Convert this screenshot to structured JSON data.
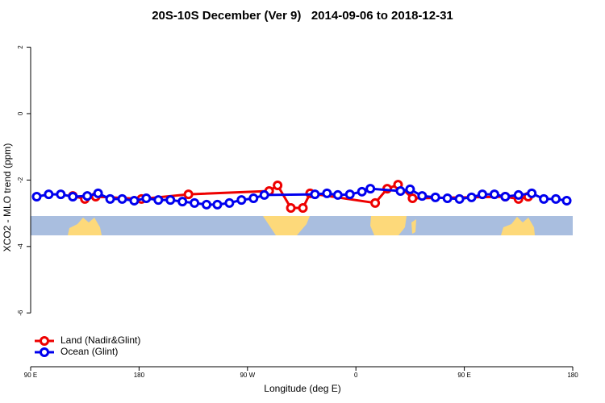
{
  "chart_data": {
    "type": "line",
    "title": "20S-10S December (Ver 9)   2014-09-06 to 2018-12-31",
    "xlabel": "Longitude (deg E)",
    "ylabel": "XCO2 - MLO trend (ppm)",
    "xlim": [
      90,
      540
    ],
    "ylim": [
      -7.62,
      2.45
    ],
    "xticks": [
      {
        "value": 90,
        "label": "90 E"
      },
      180,
      {
        "value": 270,
        "label": "90 W"
      },
      {
        "value": 360,
        "label": "0"
      },
      {
        "value": 450,
        "label": "90 E"
      },
      {
        "value": 540,
        "label": "180"
      }
    ],
    "yticks": [
      2,
      0,
      -2,
      -4,
      -6
    ],
    "legend": "bottom-left",
    "series": [
      {
        "name": "Land (Nadir&Glint)",
        "color": "#ee0000",
        "x": [
          125,
          135,
          144,
          182,
          221,
          288,
          295,
          306,
          316,
          322,
          376,
          386,
          395,
          407,
          484,
          495,
          503
        ],
        "values": [
          -2.48,
          -2.57,
          -2.5,
          -2.57,
          -2.43,
          -2.33,
          -2.16,
          -2.84,
          -2.84,
          -2.4,
          -2.69,
          -2.26,
          -2.14,
          -2.55,
          -2.5,
          -2.57,
          -2.5
        ]
      },
      {
        "name": "Ocean (Glint)",
        "color": "#0000ee",
        "x": [
          95,
          105,
          115,
          125,
          137,
          146,
          156,
          166,
          176,
          186,
          196,
          206,
          216,
          226,
          236,
          245,
          255,
          265,
          275,
          284,
          326,
          336,
          345,
          355,
          365,
          372,
          397,
          405,
          415,
          426,
          436,
          446,
          456,
          465,
          475,
          484,
          495,
          506,
          516,
          526,
          535
        ],
        "values": [
          -2.5,
          -2.43,
          -2.43,
          -2.5,
          -2.48,
          -2.4,
          -2.57,
          -2.57,
          -2.62,
          -2.55,
          -2.6,
          -2.6,
          -2.65,
          -2.69,
          -2.74,
          -2.74,
          -2.69,
          -2.6,
          -2.55,
          -2.45,
          -2.43,
          -2.4,
          -2.45,
          -2.43,
          -2.35,
          -2.26,
          -2.33,
          -2.28,
          -2.48,
          -2.52,
          -2.55,
          -2.57,
          -2.52,
          -2.43,
          -2.43,
          -2.5,
          -2.45,
          -2.4,
          -2.57,
          -2.57,
          -2.62
        ]
      }
    ]
  }
}
